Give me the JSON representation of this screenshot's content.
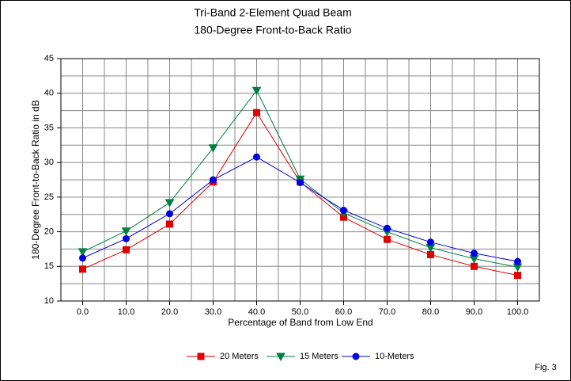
{
  "chart_data": {
    "type": "line",
    "title": [
      "Tri-Band 2-Element Quad Beam",
      "180-Degree Front-to-Back Ratio"
    ],
    "x_label": "Percentage of Band from Low End",
    "y_label": "180-Degree Front-to-Back Ratio in dB",
    "categories": [
      "0.0",
      "10.0",
      "20.0",
      "30.0",
      "40.0",
      "50.0",
      "60.0",
      "70.0",
      "80.0",
      "90.0",
      "100.0"
    ],
    "series": [
      {
        "name": "20 Meters",
        "color": "#e00000",
        "marker": "square",
        "values": [
          14.6,
          17.4,
          21.1,
          27.2,
          37.2,
          27.2,
          22.1,
          18.9,
          16.7,
          15.0,
          13.7
        ]
      },
      {
        "name": "15 Meters",
        "color": "#008040",
        "marker": "triangle-down",
        "values": [
          17.1,
          20.1,
          24.2,
          32.1,
          40.4,
          27.6,
          22.7,
          20.0,
          17.7,
          16.1,
          14.9
        ]
      },
      {
        "name": "10-Meters",
        "color": "#0000e0",
        "marker": "circle",
        "values": [
          16.2,
          19.0,
          22.6,
          27.5,
          30.8,
          27.1,
          23.1,
          20.5,
          18.5,
          16.9,
          15.7
        ]
      }
    ],
    "ylim": [
      10,
      45
    ],
    "yticks": [
      10,
      15,
      20,
      25,
      30,
      35,
      40,
      45
    ],
    "minor_yticks": [
      12.5,
      17.5,
      22.5,
      27.5,
      32.5,
      37.5,
      42.5
    ],
    "grid": true,
    "legend": "bottom",
    "note": "Fig. 3"
  }
}
